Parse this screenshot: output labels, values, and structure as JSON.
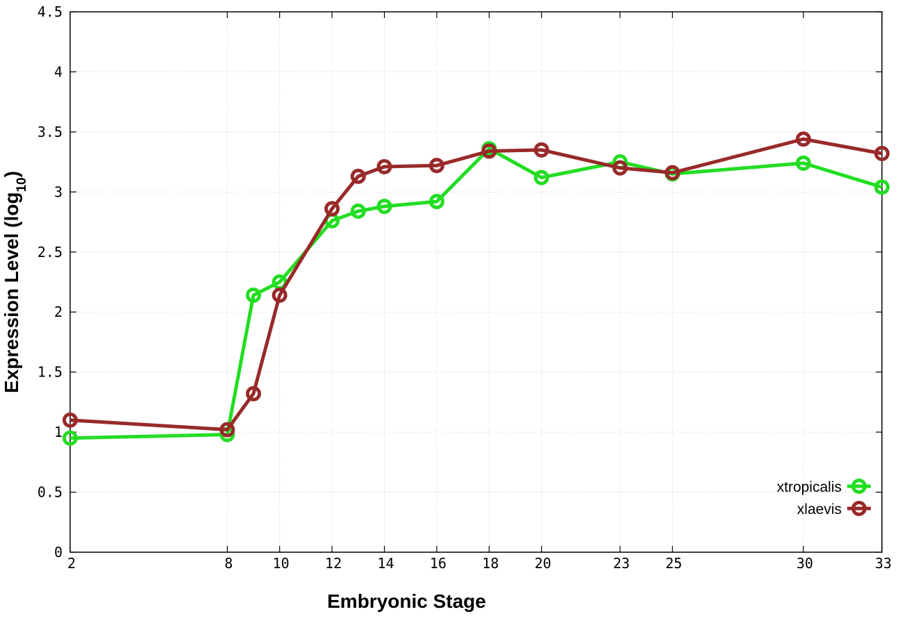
{
  "chart_data": {
    "type": "line",
    "xlabel": "Embryonic Stage",
    "ylabel": "Expression Level (log",
    "ylabel_subscript": "10",
    "ylabel_close": ")",
    "xlim": [
      2,
      33
    ],
    "ylim": [
      0,
      4.5
    ],
    "xticks": [
      2,
      8,
      10,
      12,
      14,
      16,
      18,
      20,
      23,
      25,
      30,
      33
    ],
    "yticks": [
      0,
      0.5,
      1,
      1.5,
      2,
      2.5,
      3,
      3.5,
      4,
      4.5
    ],
    "ytick_labels": [
      "0",
      "0.5",
      "1",
      "1.5",
      "2",
      "2.5",
      "3",
      "3.5",
      "4",
      "4.5"
    ],
    "grid": true,
    "legend_position": "bottom-right",
    "x": [
      2,
      8,
      9,
      10,
      12,
      13,
      14,
      16,
      18,
      20,
      23,
      25,
      30,
      33
    ],
    "series": [
      {
        "name": "xtropicalis",
        "color": "#22dd22",
        "values": [
          0.95,
          0.98,
          2.14,
          2.25,
          2.76,
          2.84,
          2.88,
          2.92,
          3.36,
          3.12,
          3.25,
          3.15,
          3.24,
          3.04
        ]
      },
      {
        "name": "xlaevis",
        "color": "#982a2a",
        "values": [
          1.1,
          1.02,
          1.32,
          2.14,
          2.86,
          3.13,
          3.21,
          3.22,
          3.34,
          3.35,
          3.2,
          3.16,
          3.44,
          3.32
        ]
      }
    ]
  }
}
